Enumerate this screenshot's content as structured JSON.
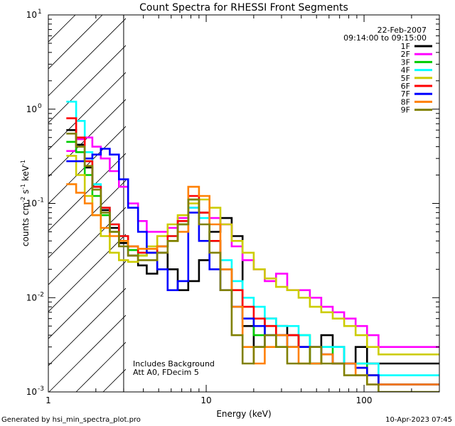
{
  "chart_data": {
    "type": "line",
    "title": "Count Spectra for RHESSI Front Segments",
    "xlabel": "Energy (keV)",
    "ylabel": "counts cm-2 s-1 keV-1",
    "xscale": "log",
    "yscale": "log",
    "xlim": [
      1,
      300
    ],
    "ylim": [
      0.001,
      10
    ],
    "x_ticks": [
      {
        "value": 1,
        "label": "1"
      },
      {
        "value": 10,
        "label": "10"
      },
      {
        "value": 100,
        "label": "100"
      }
    ],
    "y_ticks": [
      {
        "value": 0.001,
        "base": "10",
        "exp": "-3"
      },
      {
        "value": 0.01,
        "base": "10",
        "exp": "-2"
      },
      {
        "value": 0.1,
        "base": "10",
        "exp": "-1"
      },
      {
        "value": 1,
        "base": "10",
        "exp": "0"
      },
      {
        "value": 10,
        "base": "10",
        "exp": "1"
      }
    ],
    "shaded_region": {
      "x_from": 1,
      "x_to": 3,
      "style": "diagonal hatch"
    },
    "date": "22-Feb-2007",
    "time_range": "09:14:00 to 09:15:00",
    "annotation_lines": [
      "Includes Background",
      "Att A0, FDecim 5"
    ],
    "footer_left": "Generated by hsi_min_spectra_plot.pro",
    "footer_right": "10-Apr-2023 07:45",
    "series": [
      {
        "name": "1F",
        "color": "#000000",
        "values": [
          0.6,
          0.42,
          0.24,
          0.15,
          0.085,
          0.055,
          0.038,
          0.028,
          0.022,
          0.018,
          0.03,
          0.02,
          0.012,
          0.015,
          0.025,
          0.05,
          0.07,
          0.045,
          0.005,
          0.003,
          0.006,
          0.005,
          0.004,
          0.003,
          0.002,
          0.004,
          0.003,
          0.002,
          0.003,
          0.002,
          0.002
        ]
      },
      {
        "name": "2F",
        "color": "#ff00ff",
        "values": [
          0.36,
          0.48,
          0.5,
          0.4,
          0.3,
          0.22,
          0.15,
          0.1,
          0.065,
          0.05,
          0.05,
          0.055,
          0.07,
          0.09,
          0.08,
          0.07,
          0.06,
          0.035,
          0.025,
          0.02,
          0.015,
          0.018,
          0.012,
          0.012,
          0.01,
          0.008,
          0.007,
          0.006,
          0.005,
          0.004,
          0.003
        ]
      },
      {
        "name": "3F",
        "color": "#00cc00",
        "values": [
          0.45,
          0.35,
          0.2,
          0.12,
          0.075,
          0.05,
          0.04,
          0.032,
          0.028,
          0.03,
          0.035,
          0.04,
          0.06,
          0.11,
          0.08,
          0.04,
          0.02,
          0.012,
          0.006,
          0.004,
          0.005,
          0.003,
          0.003,
          0.004,
          0.002,
          0.003,
          0.002,
          0.002,
          0.002,
          0.0015,
          0.0012
        ]
      },
      {
        "name": "4F",
        "color": "#00ffff",
        "values": [
          1.2,
          0.75,
          0.35,
          0.16,
          0.09,
          0.06,
          0.045,
          0.035,
          0.03,
          0.03,
          0.035,
          0.045,
          0.065,
          0.09,
          0.07,
          0.04,
          0.025,
          0.015,
          0.01,
          0.008,
          0.006,
          0.005,
          0.005,
          0.004,
          0.003,
          0.003,
          0.003,
          0.002,
          0.002,
          0.002,
          0.0015
        ]
      },
      {
        "name": "5F",
        "color": "#cccc00",
        "values": [
          0.32,
          0.2,
          0.12,
          0.075,
          0.045,
          0.03,
          0.025,
          0.024,
          0.028,
          0.035,
          0.045,
          0.06,
          0.075,
          0.1,
          0.11,
          0.09,
          0.06,
          0.04,
          0.03,
          0.02,
          0.016,
          0.013,
          0.012,
          0.01,
          0.008,
          0.007,
          0.006,
          0.005,
          0.004,
          0.003,
          0.0025
        ]
      },
      {
        "name": "6F",
        "color": "#ff0000",
        "values": [
          0.8,
          0.5,
          0.28,
          0.15,
          0.09,
          0.06,
          0.045,
          0.035,
          0.03,
          0.03,
          0.035,
          0.045,
          0.065,
          0.12,
          0.08,
          0.04,
          0.02,
          0.012,
          0.008,
          0.006,
          0.005,
          0.004,
          0.004,
          0.003,
          0.003,
          0.0025,
          0.002,
          0.002,
          0.0018,
          0.0015,
          0.0012
        ]
      },
      {
        "name": "7F",
        "color": "#0000ff",
        "values": [
          0.28,
          0.28,
          0.3,
          0.33,
          0.38,
          0.33,
          0.18,
          0.09,
          0.05,
          0.03,
          0.02,
          0.012,
          0.015,
          0.08,
          0.04,
          0.02,
          0.012,
          0.008,
          0.006,
          0.005,
          0.004,
          0.004,
          0.003,
          0.003,
          0.003,
          0.0025,
          0.002,
          0.002,
          0.0018,
          0.0015,
          0.0012
        ]
      },
      {
        "name": "8F",
        "color": "#ff8000",
        "values": [
          0.16,
          0.13,
          0.1,
          0.075,
          0.055,
          0.045,
          0.04,
          0.035,
          0.033,
          0.033,
          0.035,
          0.04,
          0.05,
          0.15,
          0.12,
          0.06,
          0.02,
          0.008,
          0.003,
          0.002,
          0.003,
          0.004,
          0.003,
          0.002,
          0.002,
          0.0025,
          0.002,
          0.002,
          0.0015,
          0.0012,
          0.0012
        ]
      },
      {
        "name": "9F",
        "color": "#808000",
        "values": [
          0.55,
          0.4,
          0.25,
          0.14,
          0.08,
          0.05,
          0.035,
          0.028,
          0.025,
          0.025,
          0.03,
          0.04,
          0.06,
          0.11,
          0.06,
          0.03,
          0.012,
          0.004,
          0.002,
          0.003,
          0.004,
          0.003,
          0.002,
          0.002,
          0.003,
          0.002,
          0.002,
          0.0015,
          0.0015,
          0.0012,
          0.001
        ]
      }
    ],
    "x_edges": [
      1.3,
      1.5,
      1.7,
      1.9,
      2.15,
      2.45,
      2.8,
      3.2,
      3.7,
      4.2,
      4.9,
      5.7,
      6.6,
      7.7,
      9.0,
      10.5,
      12.3,
      14.5,
      17.0,
      20.0,
      23.5,
      27.7,
      32.6,
      38.5,
      45.4,
      53.6,
      63.3,
      74.8,
      88.4,
      104.5,
      123.5,
      300
    ]
  }
}
